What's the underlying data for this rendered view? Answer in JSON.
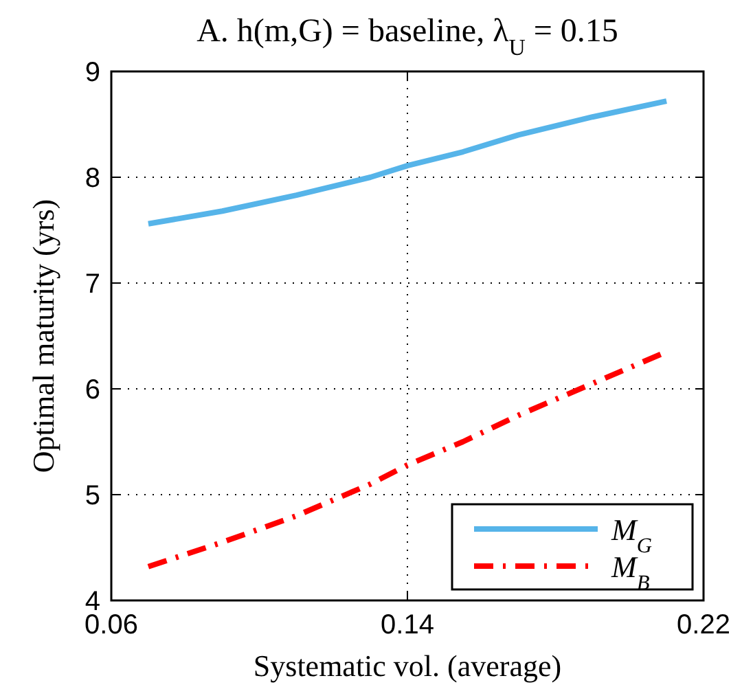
{
  "chart_data": {
    "type": "line",
    "title": "A. h(m,G) = baseline, λ$_{U}$ = 0.15",
    "xlabel": "Systematic vol. (average)",
    "ylabel": "Optimal maturity (yrs)",
    "x": [
      0.07,
      0.09,
      0.11,
      0.13,
      0.14,
      0.155,
      0.17,
      0.19,
      0.21
    ],
    "series": [
      {
        "name": "M$_{G}$",
        "color": "#56b4e9",
        "line_style": "solid",
        "values": [
          7.56,
          7.68,
          7.83,
          8.0,
          8.11,
          8.24,
          8.4,
          8.57,
          8.72
        ]
      },
      {
        "name": "M$_{B}$",
        "color": "#ff0000",
        "line_style": "dashed",
        "values": [
          4.32,
          4.55,
          4.8,
          5.1,
          5.28,
          5.5,
          5.75,
          6.05,
          6.35
        ]
      }
    ],
    "xlim": [
      0.06,
      0.22
    ],
    "xticks": [
      0.06,
      0.14,
      0.22
    ],
    "ylim": [
      4,
      9
    ],
    "yticks": [
      4,
      5,
      6,
      7,
      8,
      9
    ],
    "grid": true,
    "legend": "bottom right",
    "marker": "none"
  }
}
